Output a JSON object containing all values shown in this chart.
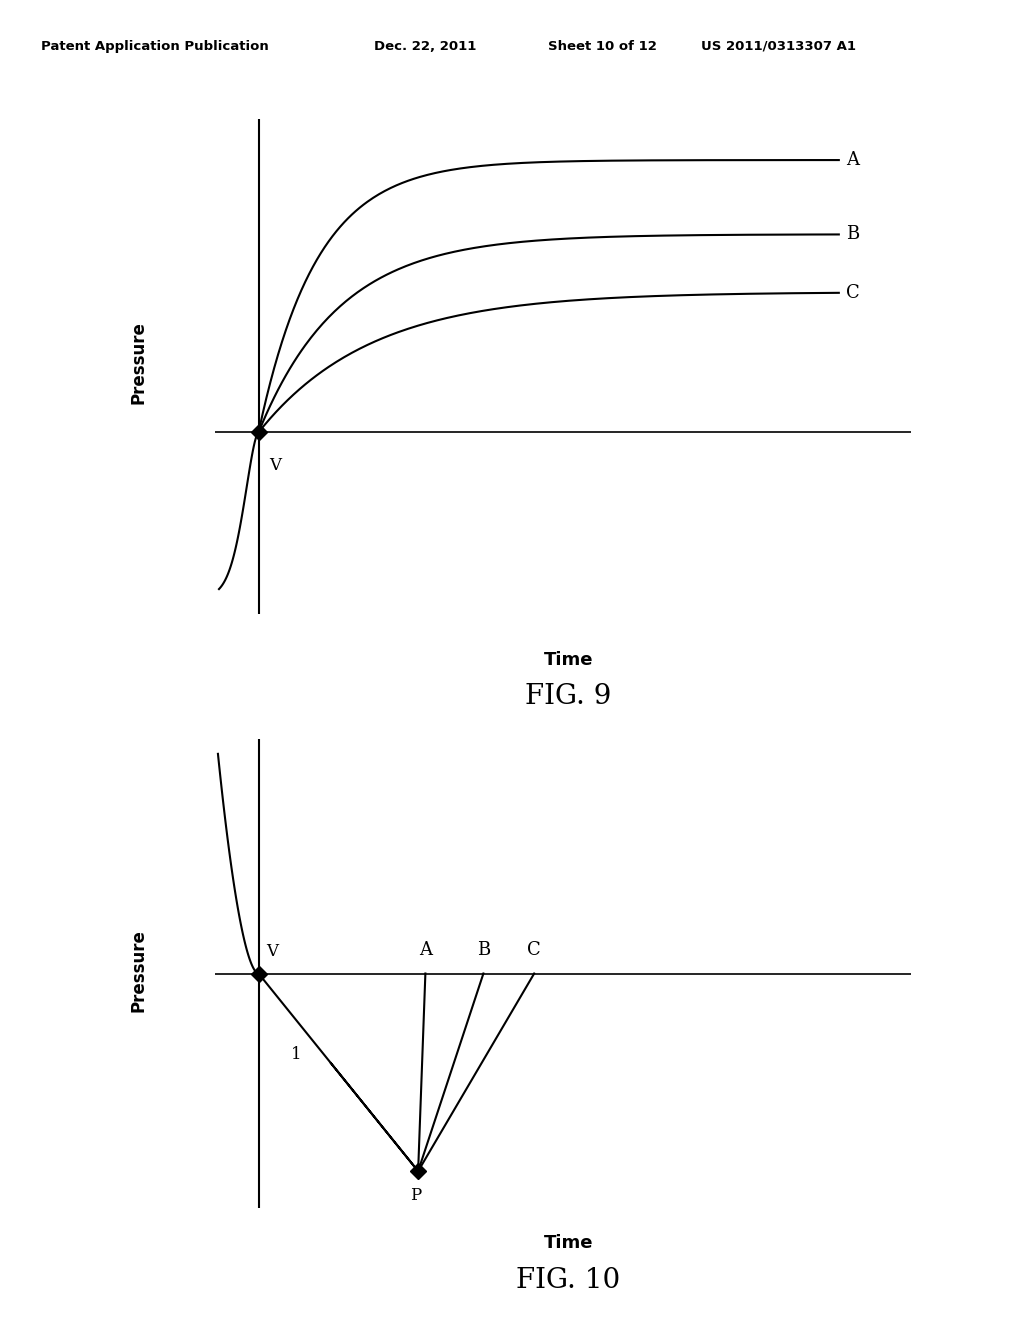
{
  "background_color": "#ffffff",
  "header_text": "Patent Application Publication",
  "header_date": "Dec. 22, 2011",
  "header_sheet": "Sheet 10 of 12",
  "header_patent": "US 2011/0313307 A1",
  "header_fontsize": 9.5,
  "fig9_title": "FIG. 9",
  "fig10_title": "FIG. 10",
  "time_label": "Time",
  "pressure_label": "Pressure",
  "title_fontsize": 20,
  "time_fontsize": 13,
  "pressure_fontsize": 12,
  "label_fontsize": 13,
  "curve_label_fontsize": 13,
  "point_label_fontsize": 12
}
